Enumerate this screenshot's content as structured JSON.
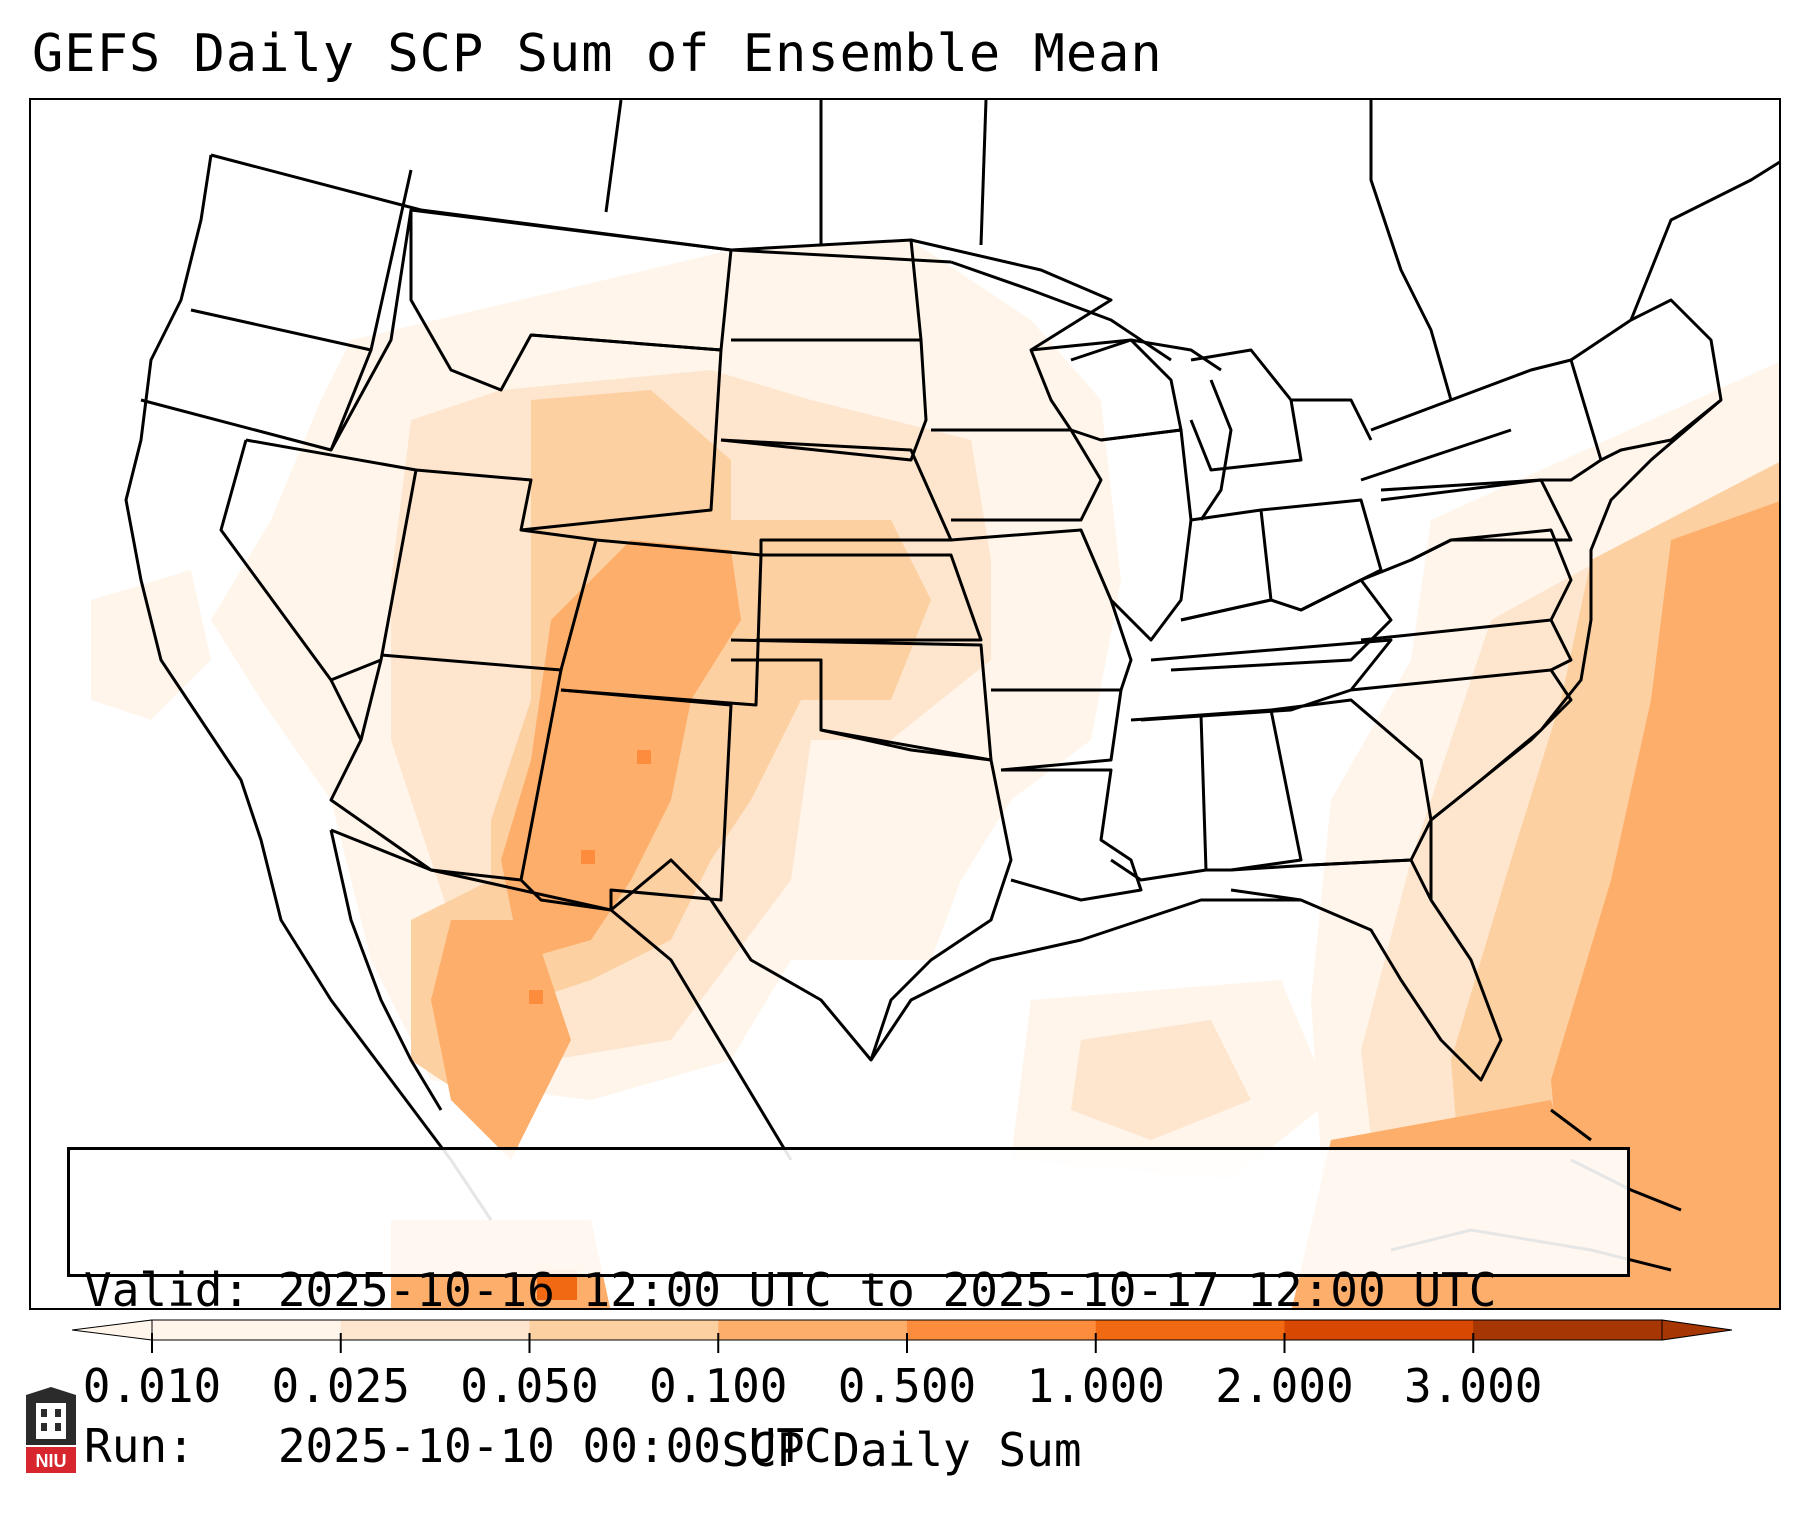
{
  "title": "GEFS Daily SCP Sum of Ensemble Mean",
  "info": {
    "valid_line": "Valid: 2025-10-16 12:00 UTC to 2025-10-17 12:00 UTC",
    "run_line": "Run:   2025-10-10 00:00 UTC"
  },
  "colorbar": {
    "label": "SCP Daily Sum",
    "ticks": [
      "0.010",
      "0.025",
      "0.050",
      "0.100",
      "0.500",
      "1.000",
      "2.000",
      "3.000"
    ],
    "colors": [
      "#fff5eb",
      "#fee6ce",
      "#fdd0a2",
      "#fdae6b",
      "#fd8d3c",
      "#f16913",
      "#d94801",
      "#a63603"
    ],
    "extend": "both"
  },
  "logo_text": "NIU"
}
